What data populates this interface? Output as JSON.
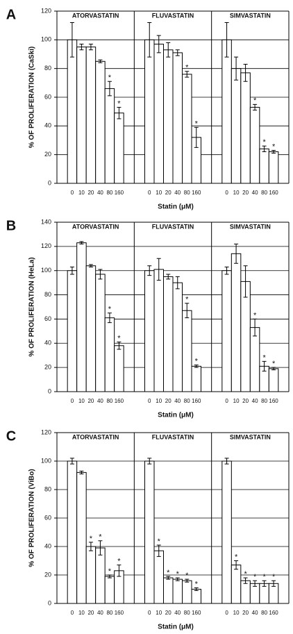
{
  "chart_data": [
    {
      "type": "bar",
      "panel": "A",
      "ylabel": "% OF PROLIFERATION (CaSki)",
      "xlabel": "Statin (μM)",
      "categories": [
        "0",
        "10",
        "20",
        "40",
        "80",
        "160"
      ],
      "series": [
        {
          "name": "ATORVASTATIN",
          "color": "#ffffff",
          "values": [
            100,
            95,
            95,
            85,
            66,
            49
          ],
          "errors": [
            12,
            2,
            2,
            1,
            5,
            4
          ],
          "markers": [
            null,
            null,
            null,
            null,
            "*",
            "*"
          ]
        },
        {
          "name": "FLUVASTATIN",
          "color": "#ffffff",
          "values": [
            100,
            97,
            93,
            91,
            76,
            32
          ],
          "errors": [
            12,
            6,
            5,
            2,
            2,
            7
          ],
          "markers": [
            null,
            null,
            null,
            null,
            "*",
            "*"
          ]
        },
        {
          "name": "SIMVASTATIN",
          "color": "#ffffff",
          "values": [
            100,
            80,
            77,
            53,
            24,
            22
          ],
          "errors": [
            12,
            8,
            6,
            2,
            2,
            1
          ],
          "markers": [
            null,
            null,
            null,
            "*",
            "*",
            "*"
          ]
        }
      ],
      "ylim": [
        0,
        120
      ],
      "yticks": [
        0,
        20,
        40,
        60,
        80,
        100,
        120
      ],
      "grid": true
    },
    {
      "type": "bar",
      "panel": "B",
      "ylabel": "% OF PROLIFERATION (HeLa)",
      "xlabel": "Statin (μM)",
      "categories": [
        "0",
        "10",
        "20",
        "40",
        "80",
        "160"
      ],
      "series": [
        {
          "name": "ATORVASTATIN",
          "color": "#ffffff",
          "values": [
            100,
            123,
            104,
            97,
            61,
            38
          ],
          "errors": [
            3,
            1,
            1,
            4,
            4,
            3
          ],
          "markers": [
            null,
            null,
            null,
            null,
            "*",
            "*"
          ]
        },
        {
          "name": "FLUVASTATIN",
          "color": "#ffffff",
          "values": [
            100,
            101,
            95,
            90,
            67,
            21
          ],
          "errors": [
            4,
            9,
            2,
            5,
            6,
            1
          ],
          "markers": [
            null,
            null,
            null,
            null,
            "*",
            "*"
          ]
        },
        {
          "name": "SIMVASTATIN",
          "color": "#ffffff",
          "values": [
            100,
            114,
            91,
            53,
            21,
            19
          ],
          "errors": [
            3,
            8,
            13,
            7,
            4,
            1
          ],
          "markers": [
            null,
            null,
            null,
            "*",
            "*",
            "*"
          ]
        }
      ],
      "ylim": [
        0,
        140
      ],
      "yticks": [
        0,
        20,
        40,
        60,
        80,
        100,
        120,
        140
      ],
      "grid": true
    },
    {
      "type": "bar",
      "panel": "C",
      "ylabel": "% OF PROLIFERATION (ViBo)",
      "xlabel": "Statin (μM)",
      "categories": [
        "0",
        "10",
        "20",
        "40",
        "80",
        "160"
      ],
      "series": [
        {
          "name": "ATORVASTATIN",
          "color": "#ffffff",
          "values": [
            100,
            92,
            40,
            39,
            19,
            23
          ],
          "errors": [
            2,
            1,
            3,
            5,
            1,
            4
          ],
          "markers": [
            null,
            null,
            "*",
            "*",
            "*",
            "*"
          ]
        },
        {
          "name": "FLUVASTATIN",
          "color": "#ffffff",
          "values": [
            100,
            37,
            18,
            17,
            16,
            10
          ],
          "errors": [
            2,
            4,
            1,
            1,
            1,
            1
          ],
          "markers": [
            null,
            "*",
            "*",
            "*",
            "*",
            "*"
          ]
        },
        {
          "name": "SIMVASTATIN",
          "color": "#ffffff",
          "values": [
            100,
            27,
            16,
            14,
            14,
            14
          ],
          "errors": [
            2,
            3,
            2,
            2,
            2,
            2
          ],
          "markers": [
            null,
            "*",
            "*",
            "*",
            "*",
            "*"
          ]
        }
      ],
      "ylim": [
        0,
        120
      ],
      "yticks": [
        0,
        20,
        40,
        60,
        80,
        100,
        120
      ],
      "grid": true
    }
  ]
}
